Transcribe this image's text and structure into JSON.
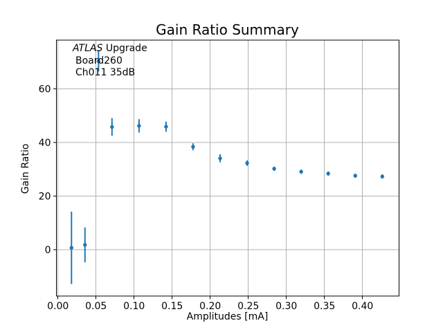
{
  "chart_data": {
    "type": "scatter",
    "title": "Gain Ratio Summary",
    "xlabel": "Amplitudes [mA]",
    "ylabel": "Gain Ratio",
    "annotation": {
      "title_italic": "ATLAS",
      "title_rest": " Upgrade",
      "line2": "Board260",
      "line3": "Ch011 35dB"
    },
    "series": [
      {
        "name": "gain-ratio-points",
        "marker": "circle",
        "color": "#1f77b4",
        "x": [
          0.0178,
          0.0355,
          0.0533,
          0.071,
          0.1065,
          0.142,
          0.1775,
          0.213,
          0.2485,
          0.284,
          0.3195,
          0.355,
          0.3905,
          0.426
        ],
        "y": [
          0.7,
          1.8,
          70.3,
          45.8,
          46.2,
          45.9,
          38.4,
          34.1,
          32.3,
          30.2,
          29.1,
          28.4,
          27.6,
          27.3
        ],
        "yerr": [
          13.5,
          6.5,
          3.8,
          3.3,
          2.5,
          1.9,
          1.3,
          1.5,
          1.0,
          0.8,
          0.8,
          0.8,
          0.8,
          0.8
        ]
      }
    ],
    "xlim": [
      -0.002,
      0.448
    ],
    "ylim": [
      -17.3,
      78.2
    ],
    "xticks": {
      "values": [
        0,
        0.05,
        0.1,
        0.15,
        0.2,
        0.25,
        0.3,
        0.35,
        0.4
      ],
      "labels": [
        "0.00",
        "0.05",
        "0.10",
        "0.15",
        "0.20",
        "0.25",
        "0.30",
        "0.35",
        "0.40"
      ]
    },
    "yticks": {
      "values": [
        0,
        20,
        40,
        60
      ],
      "labels": [
        "0",
        "20",
        "40",
        "60"
      ]
    },
    "grid": true,
    "legend": false,
    "colors": {
      "marker": "#1f77b4",
      "grid": "#b0b0b0",
      "axis": "#000000",
      "text": "#000000",
      "background": "#ffffff"
    }
  }
}
